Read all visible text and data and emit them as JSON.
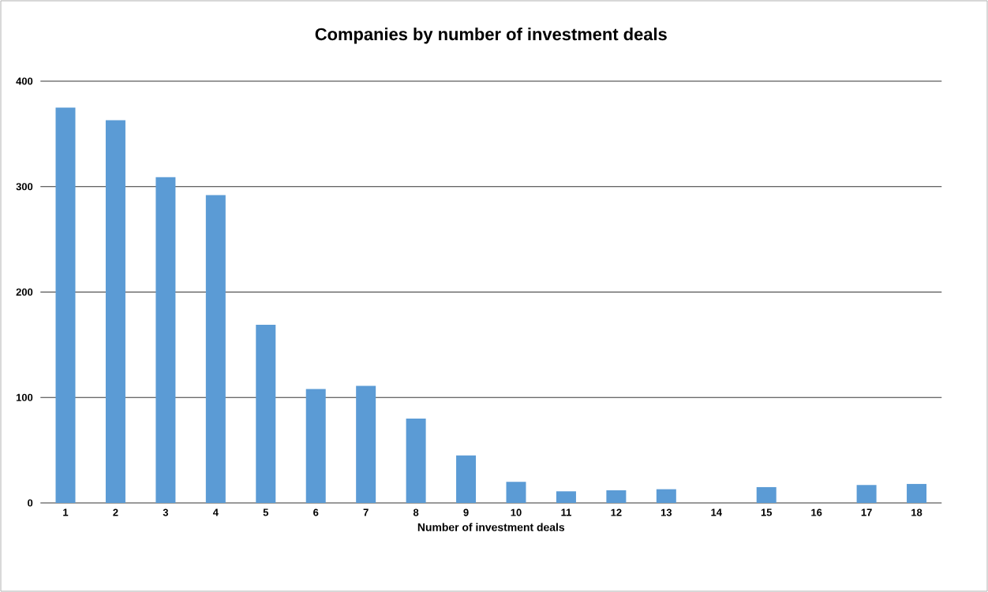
{
  "chart_data": {
    "type": "bar",
    "title": "Companies by number of investment deals",
    "xlabel": "Number of investment deals",
    "categories": [
      "1",
      "2",
      "3",
      "4",
      "5",
      "6",
      "7",
      "8",
      "9",
      "10",
      "11",
      "12",
      "13",
      "14",
      "15",
      "16",
      "17",
      "18"
    ],
    "values": [
      375,
      363,
      309,
      292,
      169,
      108,
      111,
      80,
      45,
      20,
      11,
      12,
      13,
      0,
      15,
      0,
      17,
      18
    ],
    "color": "#5b9bd5",
    "ylim": [
      0,
      400
    ],
    "yticks": [
      0,
      100,
      200,
      300,
      400
    ],
    "grid": "y"
  }
}
